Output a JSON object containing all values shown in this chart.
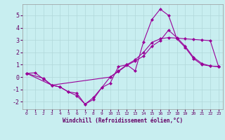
{
  "xlabel": "Windchill (Refroidissement éolien,°C)",
  "bg_color": "#c8eef0",
  "grid_color": "#b0d8da",
  "line_color": "#990099",
  "xlim": [
    -0.5,
    23.5
  ],
  "ylim": [
    -2.6,
    5.9
  ],
  "yticks": [
    -2,
    -1,
    0,
    1,
    2,
    3,
    4,
    5
  ],
  "xticks": [
    0,
    1,
    2,
    3,
    4,
    5,
    6,
    7,
    8,
    9,
    10,
    11,
    12,
    13,
    14,
    15,
    16,
    17,
    18,
    19,
    20,
    21,
    22,
    23
  ],
  "line1_x": [
    0,
    1,
    2,
    3,
    4,
    5,
    6,
    7,
    8,
    9,
    10,
    11,
    12,
    13,
    14,
    15,
    16,
    17,
    18,
    19,
    20,
    21,
    22,
    23
  ],
  "line1_y": [
    0.3,
    0.35,
    -0.15,
    -0.65,
    -0.8,
    -1.2,
    -1.3,
    -2.2,
    -1.65,
    -0.85,
    -0.5,
    0.85,
    1.0,
    0.5,
    2.85,
    4.65,
    5.5,
    5.0,
    3.1,
    2.4,
    1.5,
    1.0,
    0.9,
    0.85
  ],
  "line2_x": [
    0,
    2,
    3,
    10,
    11,
    12,
    13,
    14,
    15,
    16,
    17,
    18,
    19,
    20,
    21,
    22,
    23
  ],
  "line2_y": [
    0.3,
    -0.1,
    -0.65,
    0.0,
    0.5,
    1.0,
    1.4,
    2.0,
    2.8,
    3.1,
    3.2,
    3.15,
    3.1,
    3.05,
    3.0,
    2.95,
    0.85
  ],
  "line3_x": [
    0,
    3,
    4,
    5,
    6,
    7,
    8,
    9,
    10,
    11,
    12,
    13,
    14,
    15,
    16,
    17,
    18,
    19,
    20,
    21,
    22,
    23
  ],
  "line3_y": [
    0.3,
    -0.65,
    -0.8,
    -1.2,
    -1.5,
    -2.2,
    -1.8,
    -0.85,
    0.0,
    0.45,
    0.95,
    1.3,
    1.7,
    2.5,
    2.95,
    3.8,
    3.2,
    2.5,
    1.6,
    1.1,
    0.9,
    0.85
  ]
}
